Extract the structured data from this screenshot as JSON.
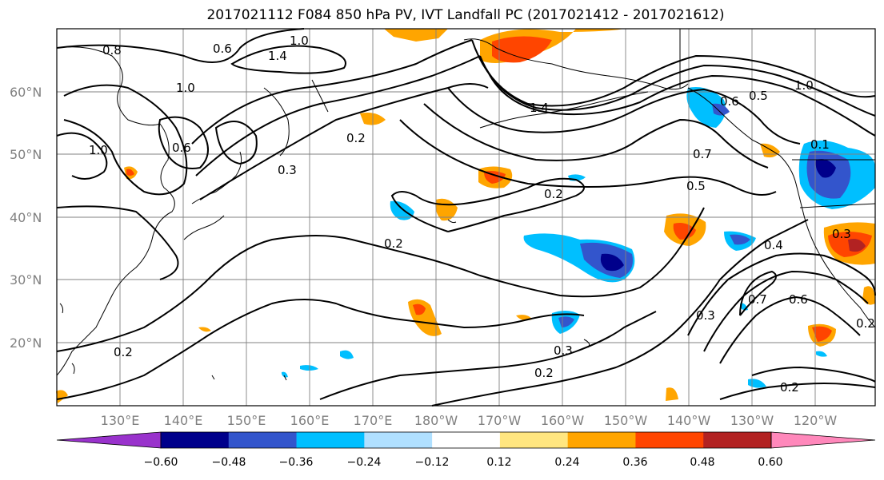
{
  "title": "2017021112 F084 850 hPa PV, IVT Landfall PC (2017021412 - 2017021612)",
  "map": {
    "lat_labels": [
      "60°N",
      "50°N",
      "40°N",
      "30°N",
      "20°N"
    ],
    "lon_labels": [
      "130°E",
      "140°E",
      "150°E",
      "160°E",
      "170°E",
      "180°W",
      "170°W",
      "160°W",
      "150°W",
      "140°W",
      "130°W",
      "120°W"
    ],
    "contour_labels": [
      "0.8",
      "1.0",
      "1.4",
      "0.6",
      "1.0",
      "0.6",
      "1.0",
      "0.2",
      "0.3",
      "0.2",
      "0.2",
      "0.5",
      "0.7",
      "1.4",
      "0.6",
      "1.0",
      "0.5",
      "0.4",
      "0.7",
      "0.6",
      "0.3",
      "0.3",
      "0.2",
      "0.2",
      "0.2",
      "0.1",
      "0.3",
      "0.2"
    ]
  },
  "colorbar": {
    "labels": [
      "−0.60",
      "−0.48",
      "−0.36",
      "−0.24",
      "−0.12",
      "0.12",
      "0.24",
      "0.36",
      "0.48",
      "0.60"
    ],
    "colors": [
      "#9932cc",
      "#00008b",
      "#3355cc",
      "#00bfff",
      "#b0e0ff",
      "#ffffff",
      "#ffe680",
      "#ffa500",
      "#ff4500",
      "#b22222",
      "#ff88bb"
    ]
  }
}
